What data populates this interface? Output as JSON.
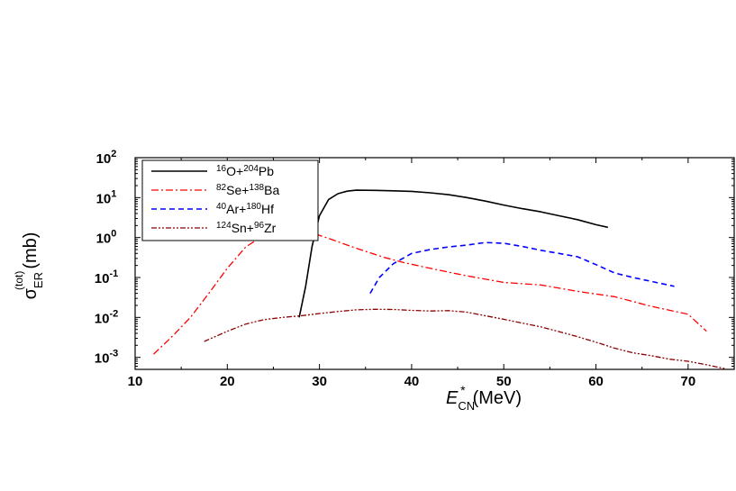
{
  "chart_data": {
    "type": "line",
    "x_axis": {
      "label_main": "E",
      "label_sub": "CN",
      "label_sup": "*",
      "label_unit": "(MeV)",
      "range": [
        10,
        75
      ],
      "ticks": [
        10,
        20,
        30,
        40,
        50,
        60,
        70
      ]
    },
    "y_axis": {
      "scale": "log",
      "label_main": "σ",
      "label_sub": "ER",
      "label_sup": "(tot)",
      "label_unit": "(mb)",
      "range": [
        0.0005,
        100
      ],
      "ticks": [
        {
          "value": 0.001,
          "base": "10",
          "exp": "-3"
        },
        {
          "value": 0.01,
          "base": "10",
          "exp": "-2"
        },
        {
          "value": 0.1,
          "base": "10",
          "exp": "-1"
        },
        {
          "value": 1,
          "base": "10",
          "exp": "0"
        },
        {
          "value": 10,
          "base": "10",
          "exp": "1"
        },
        {
          "value": 100,
          "base": "10",
          "exp": "2"
        }
      ]
    },
    "grid": false,
    "legend_position": "top-left",
    "series": [
      {
        "name": "16O+204Pb",
        "legend": [
          {
            "sup": "16",
            "t": "O+"
          },
          {
            "sup": "204",
            "t": "Pb"
          }
        ],
        "color": "#000000",
        "style": "solid",
        "x": [
          27.8,
          28.5,
          29.2,
          30.0,
          31.0,
          32.0,
          33.0,
          34.0,
          36.0,
          38.0,
          40.0,
          42.0,
          44.0,
          46.0,
          48.0,
          50.0,
          52.0,
          54.0,
          56.0,
          58.0,
          60.0,
          61.3
        ],
        "y": [
          0.01,
          0.06,
          0.6,
          3.5,
          9.0,
          12.5,
          14.5,
          15.3,
          15.2,
          14.8,
          14.3,
          13.2,
          11.8,
          10.0,
          8.2,
          6.5,
          5.3,
          4.4,
          3.5,
          2.8,
          2.1,
          1.8
        ]
      },
      {
        "name": "82Se+138Ba",
        "legend": [
          {
            "sup": "82",
            "t": "Se+"
          },
          {
            "sup": "138",
            "t": "Ba"
          }
        ],
        "color": "#ff0000",
        "style": "dashdot",
        "x": [
          12.0,
          14.0,
          16.0,
          18.0,
          20.0,
          22.0,
          24.0,
          26.0,
          27.5,
          29.0,
          31.0,
          33.0,
          35.0,
          37.0,
          39.0,
          42.0,
          46.0,
          50.0,
          54.0,
          58.0,
          62.0,
          66.0,
          70.0,
          72.0
        ],
        "y": [
          0.0012,
          0.0033,
          0.01,
          0.04,
          0.17,
          0.58,
          1.15,
          1.55,
          1.65,
          1.35,
          0.95,
          0.65,
          0.45,
          0.32,
          0.24,
          0.17,
          0.11,
          0.075,
          0.065,
          0.045,
          0.033,
          0.019,
          0.012,
          0.0045
        ]
      },
      {
        "name": "40Ar+180Hf",
        "legend": [
          {
            "sup": "40",
            "t": "Ar+"
          },
          {
            "sup": "180",
            "t": "Hf"
          }
        ],
        "color": "#0000ff",
        "style": "dashed",
        "x": [
          35.5,
          36.5,
          38.0,
          40.0,
          42.0,
          44.0,
          46.0,
          48.0,
          50.0,
          52.0,
          54.0,
          56.0,
          58.0,
          60.0,
          62.0,
          64.0,
          66.0,
          68.5
        ],
        "y": [
          0.04,
          0.1,
          0.22,
          0.4,
          0.5,
          0.58,
          0.65,
          0.75,
          0.72,
          0.6,
          0.48,
          0.4,
          0.33,
          0.21,
          0.13,
          0.1,
          0.08,
          0.06
        ]
      },
      {
        "name": "124Sn+96Zr",
        "legend": [
          {
            "sup": "124",
            "t": "Sn+"
          },
          {
            "sup": "96",
            "t": "Zr"
          }
        ],
        "color": "#8b0000",
        "style": "dashdotdot",
        "x": [
          17.5,
          20.0,
          22.0,
          24.0,
          26.0,
          28.0,
          30.0,
          32.0,
          34.0,
          36.0,
          38.0,
          40.0,
          42.0,
          44.0,
          46.0,
          48.0,
          50.0,
          52.0,
          54.0,
          56.0,
          58.0,
          60.0,
          62.0,
          64.0,
          66.0,
          68.0,
          70.0,
          72.0,
          74.0
        ],
        "y": [
          0.0025,
          0.0045,
          0.0068,
          0.0088,
          0.01,
          0.011,
          0.0125,
          0.014,
          0.0155,
          0.016,
          0.0158,
          0.015,
          0.0145,
          0.0148,
          0.0135,
          0.011,
          0.009,
          0.0072,
          0.0058,
          0.0044,
          0.0033,
          0.0024,
          0.0017,
          0.0013,
          0.0011,
          0.0009,
          0.0008,
          0.00065,
          0.00052
        ]
      }
    ]
  }
}
